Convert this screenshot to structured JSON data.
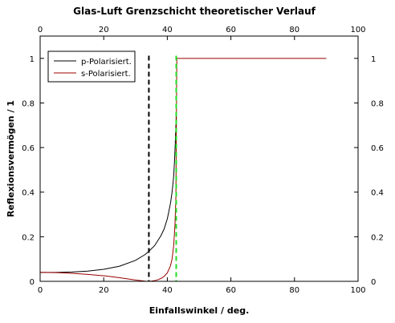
{
  "chart_data": {
    "type": "line",
    "title": "Glas-Luft Grenzschicht theoretischer Verlauf",
    "xlabel": "Einfallswinkel / deg.",
    "ylabel": "Reflexionsvermögen / 1",
    "xlim": [
      0,
      100
    ],
    "ylim": [
      0,
      1.1
    ],
    "x_ticks": [
      0,
      20,
      40,
      60,
      80,
      100
    ],
    "y_ticks": [
      0,
      0.2,
      0.4,
      0.6,
      0.8,
      1
    ],
    "y_tick_labels": [
      "0",
      "0.2",
      "0.4",
      "0.6",
      "0.8",
      "1"
    ],
    "grid": false,
    "legend_position": "top-left",
    "series": [
      {
        "name": "p-Polarisiert.",
        "color": "#000000",
        "x": [
          0,
          5,
          10,
          15,
          20,
          25,
          30,
          33,
          34.2,
          36,
          38,
          39,
          40,
          41,
          41.5,
          42,
          42.3,
          42.5,
          42.7,
          42.8
        ],
        "y": [
          0.04,
          0.04,
          0.042,
          0.046,
          0.054,
          0.068,
          0.094,
          0.12,
          0.135,
          0.16,
          0.205,
          0.235,
          0.28,
          0.35,
          0.4,
          0.47,
          0.55,
          0.62,
          0.7,
          0.74
        ]
      },
      {
        "name": "s-Polarisiert.",
        "color": "#990000",
        "x": [
          0,
          5,
          10,
          15,
          20,
          25,
          30,
          33,
          34.2,
          35,
          36,
          37,
          38,
          39,
          40,
          41,
          41.5,
          42,
          42.4,
          42.7,
          42.8,
          43,
          50,
          60,
          70,
          80,
          90
        ],
        "y": [
          0.04,
          0.039,
          0.036,
          0.031,
          0.025,
          0.016,
          0.006,
          0.001,
          0,
          0.001,
          0.003,
          0.007,
          0.013,
          0.022,
          0.038,
          0.07,
          0.1,
          0.16,
          0.25,
          0.38,
          0.6,
          1,
          1,
          1,
          1,
          1,
          1
        ]
      }
    ],
    "annotations": [
      {
        "kind": "vertical-line",
        "x": 34.2,
        "color": "#000000",
        "style": "dashed"
      },
      {
        "kind": "vertical-line",
        "x": 42.8,
        "color": "#22dd22",
        "style": "dashed"
      }
    ]
  }
}
